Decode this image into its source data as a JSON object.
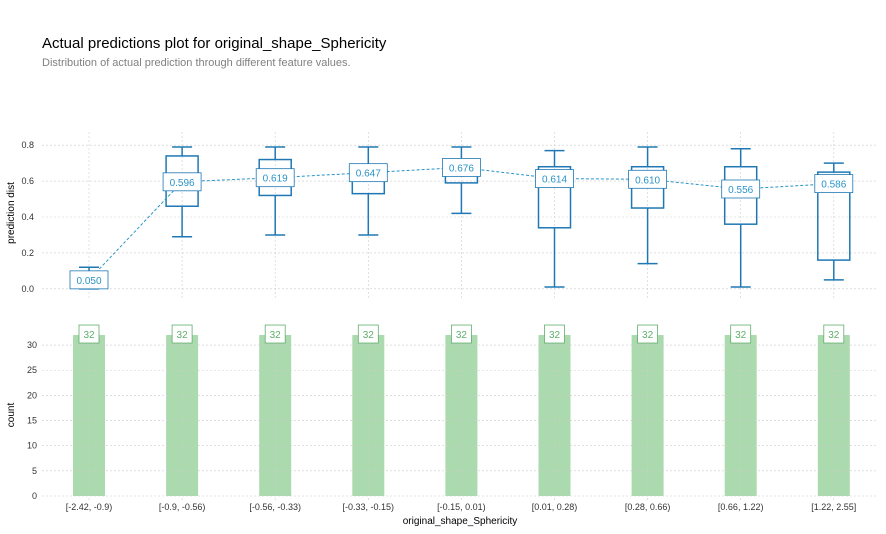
{
  "title": "Actual predictions plot for original_shape_Sphericity",
  "subtitle": "Distribution of actual prediction through different feature values.",
  "colors": {
    "box": "#1f78b4",
    "box_label": "#2a93c6",
    "bar": "#abdaaf",
    "count_label": "#5fae6b",
    "grid": "#cccccc"
  },
  "chart_data": [
    {
      "type": "box",
      "ylabel": "prediction dist",
      "ylim": [
        -0.04,
        0.84
      ],
      "yticks": [
        "0.0",
        "0.2",
        "0.4",
        "0.6",
        "0.8"
      ],
      "grid": true,
      "categories": [
        "[-2.42, -0.9)",
        "[-0.9, -0.56)",
        "[-0.56, -0.33)",
        "[-0.33, -0.15)",
        "[-0.15, 0.01)",
        "[0.01, 0.28)",
        "[0.28, 0.66)",
        "[0.66, 1.22)",
        "[1.22, 2.55]"
      ],
      "boxes": [
        {
          "min": 0.0,
          "q1": 0.02,
          "median": 0.04,
          "q3": 0.07,
          "max": 0.12
        },
        {
          "min": 0.29,
          "q1": 0.46,
          "median": 0.6,
          "q3": 0.74,
          "max": 0.79
        },
        {
          "min": 0.3,
          "q1": 0.52,
          "median": 0.62,
          "q3": 0.72,
          "max": 0.79
        },
        {
          "min": 0.3,
          "q1": 0.53,
          "median": 0.64,
          "q3": 0.69,
          "max": 0.79
        },
        {
          "min": 0.42,
          "q1": 0.59,
          "median": 0.68,
          "q3": 0.71,
          "max": 0.79
        },
        {
          "min": 0.01,
          "q1": 0.34,
          "median": 0.63,
          "q3": 0.68,
          "max": 0.77
        },
        {
          "min": 0.14,
          "q1": 0.45,
          "median": 0.61,
          "q3": 0.68,
          "max": 0.79
        },
        {
          "min": 0.01,
          "q1": 0.36,
          "median": 0.56,
          "q3": 0.68,
          "max": 0.78
        },
        {
          "min": 0.05,
          "q1": 0.16,
          "median": 0.58,
          "q3": 0.65,
          "max": 0.7
        }
      ],
      "means": [
        0.05,
        0.596,
        0.619,
        0.647,
        0.676,
        0.614,
        0.61,
        0.556,
        0.586
      ],
      "mean_labels": [
        "0.050",
        "0.596",
        "0.619",
        "0.647",
        "0.676",
        "0.614",
        "0.610",
        "0.556",
        "0.586"
      ]
    },
    {
      "type": "bar",
      "xlabel": "original_shape_Sphericity",
      "ylabel": "count",
      "ylim": [
        0,
        33
      ],
      "yticks": [
        "0",
        "5",
        "10",
        "15",
        "20",
        "25",
        "30"
      ],
      "grid": true,
      "categories": [
        "[-2.42, -0.9)",
        "[-0.9, -0.56)",
        "[-0.56, -0.33)",
        "[-0.33, -0.15)",
        "[-0.15, 0.01)",
        "[0.01, 0.28)",
        "[0.28, 0.66)",
        "[0.66, 1.22)",
        "[1.22, 2.55]"
      ],
      "values": [
        32,
        32,
        32,
        32,
        32,
        32,
        32,
        32,
        32
      ],
      "labels": [
        "32",
        "32",
        "32",
        "32",
        "32",
        "32",
        "32",
        "32",
        "32"
      ]
    }
  ]
}
